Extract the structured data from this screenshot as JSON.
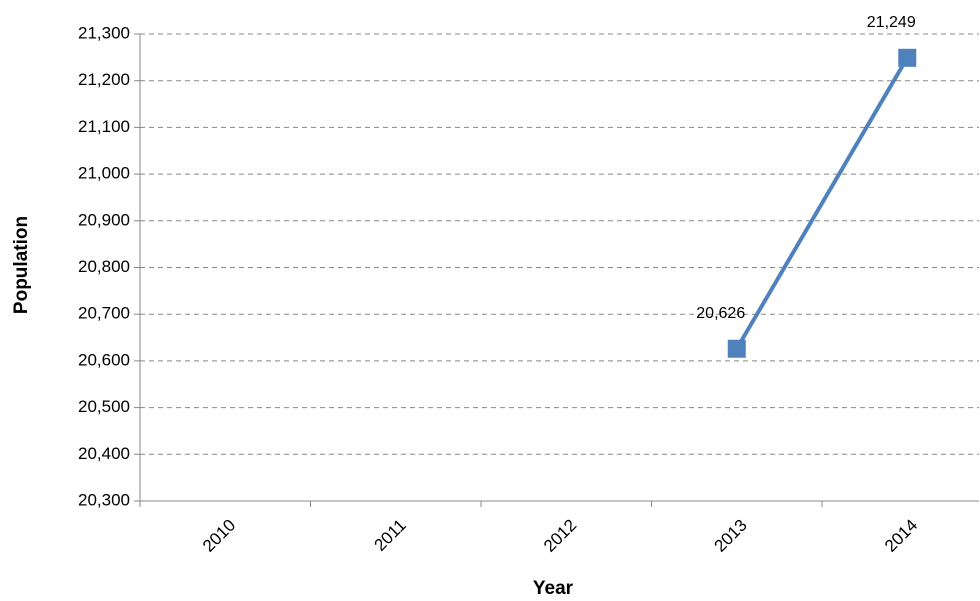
{
  "chart_data": {
    "type": "line",
    "x_label": "Year",
    "y_label": "Population",
    "categories": [
      "2010",
      "2011",
      "2012",
      "2013",
      "2014"
    ],
    "values": [
      null,
      null,
      null,
      20626,
      21249
    ],
    "value_labels": [
      null,
      null,
      null,
      "20,626",
      "21,249"
    ],
    "color": "#4f81bd",
    "ylim": [
      20300,
      21300
    ],
    "yticks": [
      {
        "value": 20300,
        "label": "20,300"
      },
      {
        "value": 20400,
        "label": "20,400"
      },
      {
        "value": 20500,
        "label": "20,500"
      },
      {
        "value": 20600,
        "label": "20,600"
      },
      {
        "value": 20700,
        "label": "20,700"
      },
      {
        "value": 20800,
        "label": "20,800"
      },
      {
        "value": 20900,
        "label": "20,900"
      },
      {
        "value": 21000,
        "label": "21,000"
      },
      {
        "value": 21100,
        "label": "21,100"
      },
      {
        "value": 21200,
        "label": "21,200"
      },
      {
        "value": 21300,
        "label": "21,300"
      }
    ],
    "grid": true
  }
}
